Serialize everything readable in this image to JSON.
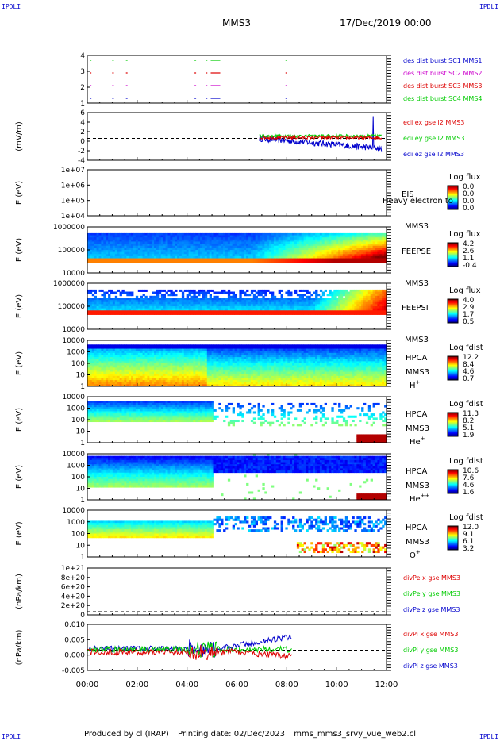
{
  "corner_mark": "IPDLI",
  "header": {
    "mission": "MMS3",
    "date": "17/Dec/2019 00:00"
  },
  "footer": {
    "produced": "Produced by cl (IRAP)",
    "printing": "Printing date: 02/Dec/2023",
    "script": "mms_mms3_srvy_vue_web2.cl"
  },
  "colors": {
    "blue": "#0000cc",
    "red": "#dd0000",
    "green": "#00cc00",
    "magenta": "#cc00cc"
  },
  "chart_data": {
    "type": "multi-panel time series",
    "x_ticks": [
      "00:00",
      "02:00",
      "04:00",
      "06:00",
      "08:00",
      "10:00",
      "12:00"
    ],
    "x_range_hours": [
      0,
      12
    ],
    "panels": [
      {
        "id": "burst",
        "type": "event",
        "y_ticks": [
          "4",
          "3",
          "2",
          "1"
        ],
        "legend": [
          {
            "text": "des dist burst SC1 MMS1",
            "color": "#0000cc"
          },
          {
            "text": "des dist burst SC2 MMS2",
            "color": "#cc00cc"
          },
          {
            "text": "des dist burst SC3 MMS3",
            "color": "#dd0000"
          },
          {
            "text": "des dist burst SC4 MMS4",
            "color": "#00cc00"
          }
        ],
        "events_hours": [
          0.1,
          1.0,
          1.55,
          4.3,
          4.75,
          4.95,
          7.95
        ]
      },
      {
        "id": "efield",
        "type": "line",
        "ylabel": "(mV/m)",
        "y_ticks": [
          "6",
          "4",
          "2",
          "0",
          "-2",
          "-4"
        ],
        "ylim": [
          -5.5,
          6.5
        ],
        "legend": [
          {
            "text": "edi ex gse l2 MMS3",
            "color": "#dd0000"
          },
          {
            "text": "edi ey gse l2 MMS3",
            "color": "#00cc00"
          },
          {
            "text": "edi ez gse l2 MMS3",
            "color": "#0000cc"
          }
        ],
        "data_range_hours": [
          6.9,
          11.8
        ]
      },
      {
        "id": "eis",
        "type": "spectrogram",
        "ylabel": "E (eV)",
        "y_ticks": [
          "1e+07",
          "1e+06",
          "1e+05",
          "1e+04"
        ],
        "labels": [
          "EIS",
          "MMS3"
        ],
        "overlay": "Heavy electron to",
        "colorbar": {
          "title": "Log flux",
          "ticks": [
            "0.0",
            "0.0",
            "0.0",
            "0.0"
          ]
        },
        "empty": true
      },
      {
        "id": "feepse",
        "type": "spectrogram",
        "ylabel": "E (eV)",
        "y_ticks": [
          "1000000",
          "100000",
          "10000"
        ],
        "labels": [
          "FEEPSE",
          "MMS3"
        ],
        "colorbar": {
          "title": "Log flux",
          "ticks": [
            "4.2",
            "2.6",
            "1.1",
            "-0.4"
          ]
        }
      },
      {
        "id": "feepsi",
        "type": "spectrogram",
        "ylabel": "E (eV)",
        "y_ticks": [
          "1000000",
          "100000",
          "10000"
        ],
        "labels": [
          "FEEPSI",
          "MMS3"
        ],
        "colorbar": {
          "title": "Log flux",
          "ticks": [
            "4.0",
            "2.9",
            "1.7",
            "0.5"
          ]
        }
      },
      {
        "id": "hpca_h",
        "type": "spectrogram",
        "ylabel": "E (eV)",
        "y_ticks": [
          "10000",
          "1000",
          "100",
          "10",
          "1"
        ],
        "labels": [
          "HPCA",
          "MMS3"
        ],
        "species": "H",
        "species_sup": "+",
        "colorbar": {
          "title": "Log fdist",
          "ticks": [
            "12.2",
            "8.4",
            "4.6",
            "0.7"
          ]
        }
      },
      {
        "id": "hpca_he",
        "type": "spectrogram",
        "ylabel": "E (eV)",
        "y_ticks": [
          "10000",
          "1000",
          "100",
          "10",
          "1"
        ],
        "labels": [
          "HPCA",
          "MMS3"
        ],
        "species": "He",
        "species_sup": "+",
        "colorbar": {
          "title": "Log fdist",
          "ticks": [
            "11.3",
            "8.2",
            "5.1",
            "1.9"
          ]
        }
      },
      {
        "id": "hpca_hepp",
        "type": "spectrogram",
        "ylabel": "E (eV)",
        "y_ticks": [
          "10000",
          "1000",
          "100",
          "10",
          "1"
        ],
        "labels": [
          "HPCA",
          "MMS3"
        ],
        "species": "He",
        "species_sup": "++",
        "colorbar": {
          "title": "Log fdist",
          "ticks": [
            "10.6",
            "7.6",
            "4.6",
            "1.6"
          ]
        }
      },
      {
        "id": "hpca_o",
        "type": "spectrogram",
        "ylabel": "E (eV)",
        "y_ticks": [
          "10000",
          "1000",
          "100",
          "10",
          "1"
        ],
        "labels": [
          "HPCA",
          "MMS3"
        ],
        "species": "O",
        "species_sup": "+",
        "colorbar": {
          "title": "Log fdist",
          "ticks": [
            "12.0",
            "9.1",
            "6.1",
            "3.2"
          ]
        }
      },
      {
        "id": "divpe",
        "type": "line",
        "ylabel": "(nPa/km)",
        "y_ticks": [
          "1e+21",
          "8e+20",
          "6e+20",
          "4e+20",
          "2e+20",
          "0"
        ],
        "legend": [
          {
            "text": "divPe x gse MMS3",
            "color": "#dd0000"
          },
          {
            "text": "divPe y gse MMS3",
            "color": "#00cc00"
          },
          {
            "text": "divPe z gse MMS3",
            "color": "#0000cc"
          }
        ]
      },
      {
        "id": "divpi",
        "type": "line",
        "ylabel": "(nPa/km)",
        "y_ticks": [
          "0.010",
          "0.005",
          "0.000",
          "-0.005"
        ],
        "ylim": [
          -0.0085,
          0.0108
        ],
        "legend": [
          {
            "text": "divPi x gse MMS3",
            "color": "#dd0000"
          },
          {
            "text": "divPi y gse MMS3",
            "color": "#00cc00"
          },
          {
            "text": "divPi z gse MMS3",
            "color": "#0000cc"
          }
        ],
        "data_range_hours": [
          0,
          8.2
        ]
      }
    ]
  }
}
